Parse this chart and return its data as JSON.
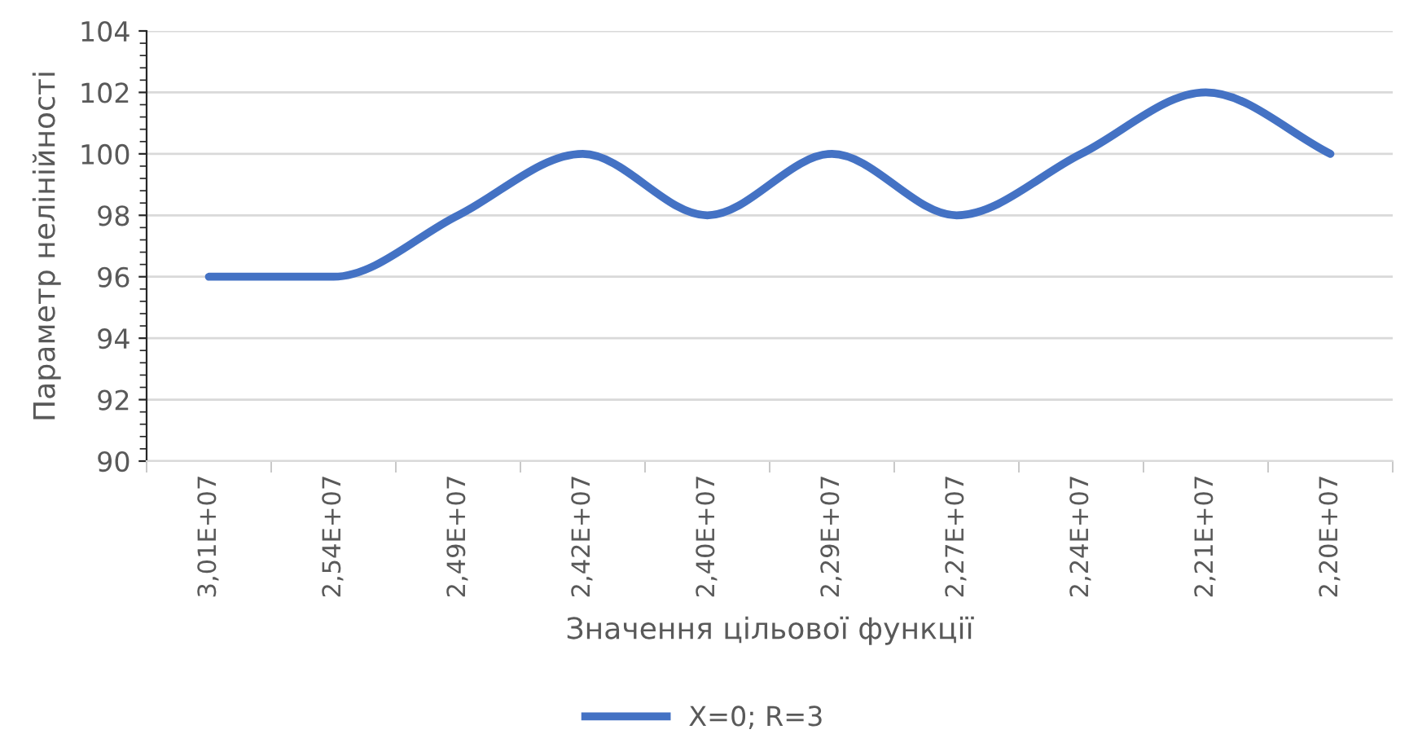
{
  "chart_data": {
    "type": "line",
    "xlabel": "Значення цільової функції",
    "ylabel": "Параметр нелінійності",
    "categories": [
      "3,01E+07",
      "2,54E+07",
      "2,49E+07",
      "2,42E+07",
      "2,40E+07",
      "2,29E+07",
      "2,27E+07",
      "2,24E+07",
      "2,21E+07",
      "2,20E+07"
    ],
    "series": [
      {
        "name": "X=0; R=3",
        "color": "#4472c4",
        "values": [
          96,
          96,
          98,
          100,
          98,
          100,
          98,
          100,
          102,
          100
        ]
      }
    ],
    "ylim": [
      90,
      104
    ],
    "yticks": [
      90,
      92,
      94,
      96,
      98,
      100,
      102,
      104
    ],
    "grid": "y",
    "legend": "bottom",
    "marker": "none",
    "line_style": "solid"
  }
}
